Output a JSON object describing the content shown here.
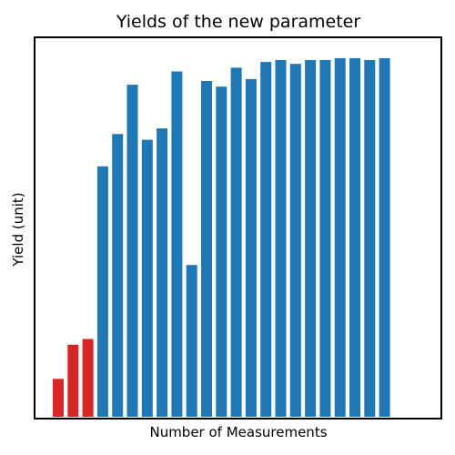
{
  "chart_data": {
    "type": "bar",
    "title": "Yields of the new parameter",
    "xlabel": "Number of Measurements",
    "ylabel": "Yield (unit)",
    "ylim": [
      0,
      100
    ],
    "grid": false,
    "x_ticks_shown": false,
    "y_ticks_shown": false,
    "values": [
      10,
      19,
      20.5,
      66,
      74.5,
      87.5,
      73,
      76,
      91,
      40,
      88.5,
      87,
      92,
      89,
      93.5,
      94,
      93,
      94,
      94,
      94.5,
      94.5,
      94,
      94.5
    ],
    "colors": [
      "#d62728",
      "#d62728",
      "#d62728",
      "#1f77b4",
      "#1f77b4",
      "#1f77b4",
      "#1f77b4",
      "#1f77b4",
      "#1f77b4",
      "#1f77b4",
      "#1f77b4",
      "#1f77b4",
      "#1f77b4",
      "#1f77b4",
      "#1f77b4",
      "#1f77b4",
      "#1f77b4",
      "#1f77b4",
      "#1f77b4",
      "#1f77b4",
      "#1f77b4",
      "#1f77b4",
      "#1f77b4"
    ],
    "highlight_color": "#d62728",
    "bar_color": "#1f77b4"
  }
}
